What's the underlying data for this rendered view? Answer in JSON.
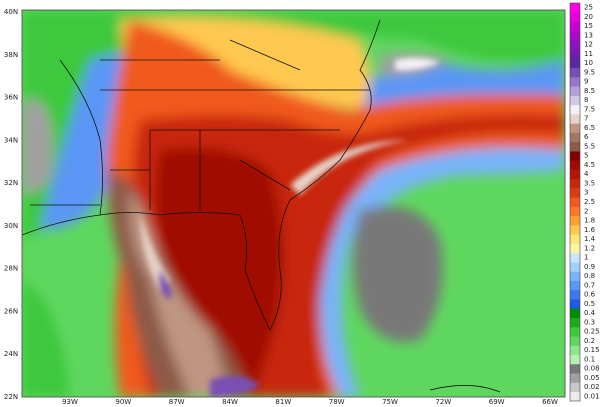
{
  "map": {
    "lat_labels": [
      "40N",
      "38N",
      "36N",
      "34N",
      "32N",
      "30N",
      "28N",
      "26N",
      "24N",
      "22N"
    ],
    "lon_labels": [
      "93W",
      "90W",
      "87W",
      "84W",
      "81W",
      "78W",
      "75W",
      "72W",
      "69W",
      "66W"
    ],
    "colorbar": {
      "levels": [
        {
          "label": "0.01",
          "color": "#ececec"
        },
        {
          "label": "0.02",
          "color": "#c8c8c8"
        },
        {
          "label": "0.05",
          "color": "#a0a0a0"
        },
        {
          "label": "0.08",
          "color": "#787878"
        },
        {
          "label": "0.1",
          "color": "#b4f0b4"
        },
        {
          "label": "0.15",
          "color": "#8ce68c"
        },
        {
          "label": "0.2",
          "color": "#5fd75f"
        },
        {
          "label": "0.25",
          "color": "#3cc83c"
        },
        {
          "label": "0.3",
          "color": "#1eaa1e"
        },
        {
          "label": "0.4",
          "color": "#008c00"
        },
        {
          "label": "0.5",
          "color": "#1e5ae6"
        },
        {
          "label": "0.6",
          "color": "#3c78f0"
        },
        {
          "label": "0.7",
          "color": "#5a96f5"
        },
        {
          "label": "0.8",
          "color": "#78b4fa"
        },
        {
          "label": "0.9",
          "color": "#a0d2ff"
        },
        {
          "label": "1",
          "color": "#c8e6ff"
        },
        {
          "label": "1.2",
          "color": "#fff5a0"
        },
        {
          "label": "1.4",
          "color": "#ffe678"
        },
        {
          "label": "1.6",
          "color": "#ffc850"
        },
        {
          "label": "1.8",
          "color": "#ffa032"
        },
        {
          "label": "2",
          "color": "#ff7828"
        },
        {
          "label": "2.5",
          "color": "#f05a1e"
        },
        {
          "label": "3",
          "color": "#dc3c14"
        },
        {
          "label": "3.5",
          "color": "#c8280a"
        },
        {
          "label": "4",
          "color": "#b41400"
        },
        {
          "label": "4.5",
          "color": "#a00a00"
        },
        {
          "label": "5",
          "color": "#820000"
        },
        {
          "label": "5.5",
          "color": "#8c5a46"
        },
        {
          "label": "6",
          "color": "#a07864"
        },
        {
          "label": "6.5",
          "color": "#be9682"
        },
        {
          "label": "7",
          "color": "#e6d2c8"
        },
        {
          "label": "7.5",
          "color": "#f5f0f5"
        },
        {
          "label": "8",
          "color": "#d2c8e6"
        },
        {
          "label": "8.5",
          "color": "#b4a0dc"
        },
        {
          "label": "9",
          "color": "#9678c8"
        },
        {
          "label": "9.5",
          "color": "#7850b4"
        },
        {
          "label": "10",
          "color": "#5a28a0"
        },
        {
          "label": "11",
          "color": "#6e1eaa"
        },
        {
          "label": "12",
          "color": "#8c14be"
        },
        {
          "label": "13",
          "color": "#aa0ac8"
        },
        {
          "label": "15",
          "color": "#c800d2"
        },
        {
          "label": "20",
          "color": "#e600dc"
        },
        {
          "label": "25",
          "color": "#ff00e6"
        }
      ]
    }
  }
}
